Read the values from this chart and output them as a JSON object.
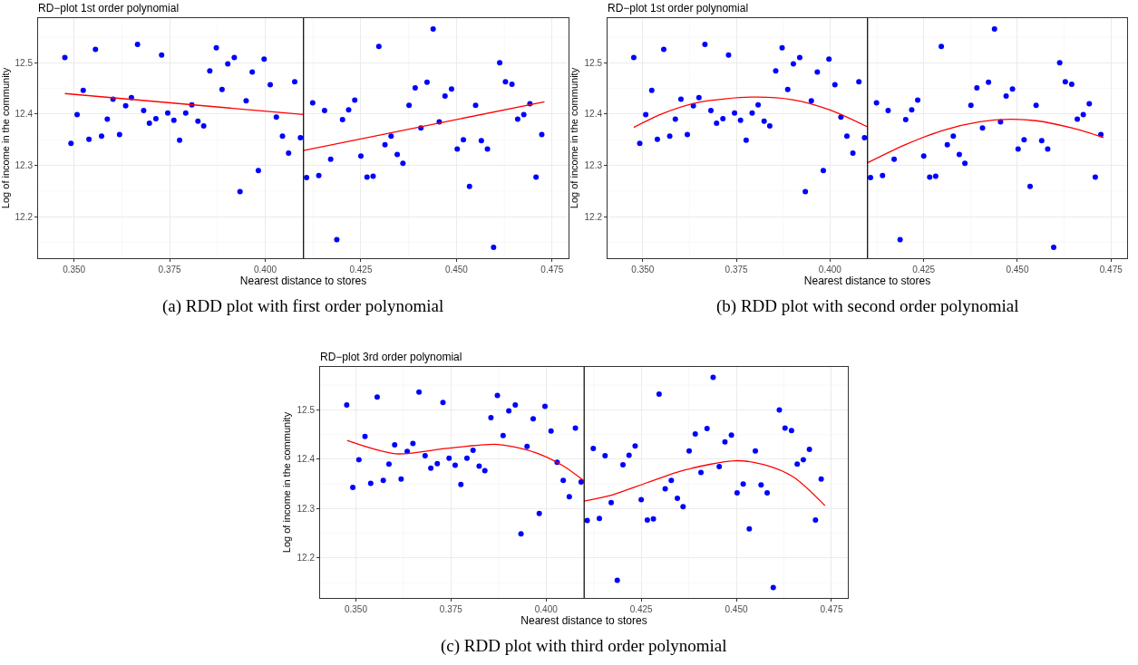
{
  "chart_data": [
    {
      "type": "scatter",
      "title": "RD−plot 1st order polynomial",
      "xlabel": "Nearest distance to stores",
      "ylabel": "Log of income in the community",
      "annotations": [
        "(a) RDD plot with first order polynomial"
      ],
      "xlim": [
        0.3406,
        0.4793
      ],
      "ylim": [
        12.119,
        12.587
      ],
      "xticks": [
        {
          "value": 0.35,
          "label": "0.350"
        },
        {
          "value": 0.375,
          "label": "0.375"
        },
        {
          "value": 0.4,
          "label": "0.400"
        },
        {
          "value": 0.425,
          "label": "0.425"
        },
        {
          "value": 0.45,
          "label": "0.450"
        },
        {
          "value": 0.475,
          "label": "0.475"
        }
      ],
      "yticks": [
        12.2,
        12.3,
        12.4,
        12.5
      ],
      "grid": true,
      "ref_lines": [
        {
          "axis": "x",
          "value": 0.41,
          "color": "#000000"
        }
      ],
      "series": [
        {
          "color": "#0000ff",
          "marker": "circle",
          "x": [
            0.3476,
            0.3492,
            0.3508,
            0.3524,
            0.3539,
            0.3556,
            0.3572,
            0.3587,
            0.3602,
            0.3619,
            0.3635,
            0.365,
            0.3666,
            0.3682,
            0.3697,
            0.3714,
            0.3729,
            0.3745,
            0.3761,
            0.3776,
            0.3792,
            0.3808,
            0.3824,
            0.3839,
            0.3855,
            0.3872,
            0.3887,
            0.3902,
            0.3919,
            0.3934,
            0.395,
            0.3966,
            0.3982,
            0.3997,
            0.4013,
            0.4029,
            0.4045,
            0.4061,
            0.4077,
            0.4092,
            0.4108,
            0.4124,
            0.414,
            0.4155,
            0.4171,
            0.4187,
            0.4202,
            0.4218,
            0.4234,
            0.425,
            0.4266,
            0.4282,
            0.4297,
            0.4313,
            0.4329,
            0.4345,
            0.436,
            0.4376,
            0.4392,
            0.4407,
            0.4423,
            0.4439,
            0.4455,
            0.447,
            0.4487,
            0.4502,
            0.4518,
            0.4534,
            0.455,
            0.4565,
            0.4581,
            0.4597,
            0.4613,
            0.4628,
            0.4645,
            0.466,
            0.4676,
            0.4692,
            0.4708,
            0.4723
          ],
          "values": [
            12.51,
            12.343,
            12.399,
            12.446,
            12.351,
            12.526,
            12.357,
            12.39,
            12.429,
            12.36,
            12.416,
            12.432,
            12.536,
            12.407,
            12.382,
            12.391,
            12.515,
            12.402,
            12.388,
            12.349,
            12.402,
            12.418,
            12.386,
            12.377,
            12.484,
            12.529,
            12.448,
            12.498,
            12.51,
            12.249,
            12.426,
            12.482,
            12.29,
            12.507,
            12.457,
            12.394,
            12.357,
            12.324,
            12.463,
            12.354,
            12.276,
            12.422,
            12.28,
            12.407,
            12.312,
            12.155,
            12.389,
            12.408,
            12.427,
            12.318,
            12.277,
            12.279,
            12.532,
            12.34,
            12.357,
            12.321,
            12.304,
            12.417,
            12.451,
            12.373,
            12.462,
            12.566,
            12.385,
            12.435,
            12.449,
            12.332,
            12.35,
            12.259,
            12.417,
            12.348,
            12.332,
            12.14,
            12.5,
            12.463,
            12.458,
            12.39,
            12.399,
            12.42,
            12.277,
            12.36
          ]
        },
        {
          "type": "line",
          "color": "#ff0000",
          "marker": "none",
          "x": [
            0.3476,
            0.41
          ],
          "values": [
            12.44,
            12.399
          ]
        },
        {
          "type": "line",
          "color": "#ff0000",
          "marker": "none",
          "x": [
            0.41,
            0.473
          ],
          "values": [
            12.329,
            12.424
          ]
        }
      ]
    },
    {
      "type": "scatter",
      "title": "RD−plot 1st order polynomial",
      "xlabel": "Nearest distance to stores",
      "ylabel": "Log of income in the community",
      "annotations": [
        "(b) RDD plot with second order polynomial"
      ],
      "xlim": [
        0.3406,
        0.4793
      ],
      "ylim": [
        12.119,
        12.587
      ],
      "xticks": [
        {
          "value": 0.35,
          "label": "0.350"
        },
        {
          "value": 0.375,
          "label": "0.375"
        },
        {
          "value": 0.4,
          "label": "0.400"
        },
        {
          "value": 0.425,
          "label": "0.425"
        },
        {
          "value": 0.45,
          "label": "0.450"
        },
        {
          "value": 0.475,
          "label": "0.475"
        }
      ],
      "yticks": [
        12.2,
        12.3,
        12.4,
        12.5
      ],
      "grid": true,
      "ref_lines": [
        {
          "axis": "x",
          "value": 0.41,
          "color": "#000000"
        }
      ],
      "series": [
        {
          "color": "#0000ff",
          "marker": "circle",
          "x": [
            0.3476,
            0.3492,
            0.3508,
            0.3524,
            0.3539,
            0.3556,
            0.3572,
            0.3587,
            0.3602,
            0.3619,
            0.3635,
            0.365,
            0.3666,
            0.3682,
            0.3697,
            0.3714,
            0.3729,
            0.3745,
            0.3761,
            0.3776,
            0.3792,
            0.3808,
            0.3824,
            0.3839,
            0.3855,
            0.3872,
            0.3887,
            0.3902,
            0.3919,
            0.3934,
            0.395,
            0.3966,
            0.3982,
            0.3997,
            0.4013,
            0.4029,
            0.4045,
            0.4061,
            0.4077,
            0.4092,
            0.4108,
            0.4124,
            0.414,
            0.4155,
            0.4171,
            0.4187,
            0.4202,
            0.4218,
            0.4234,
            0.425,
            0.4266,
            0.4282,
            0.4297,
            0.4313,
            0.4329,
            0.4345,
            0.436,
            0.4376,
            0.4392,
            0.4407,
            0.4423,
            0.4439,
            0.4455,
            0.447,
            0.4487,
            0.4502,
            0.4518,
            0.4534,
            0.455,
            0.4565,
            0.4581,
            0.4597,
            0.4613,
            0.4628,
            0.4645,
            0.466,
            0.4676,
            0.4692,
            0.4708,
            0.4723
          ],
          "values": [
            12.51,
            12.343,
            12.399,
            12.446,
            12.351,
            12.526,
            12.357,
            12.39,
            12.429,
            12.36,
            12.416,
            12.432,
            12.536,
            12.407,
            12.382,
            12.391,
            12.515,
            12.402,
            12.388,
            12.349,
            12.402,
            12.418,
            12.386,
            12.377,
            12.484,
            12.529,
            12.448,
            12.498,
            12.51,
            12.249,
            12.426,
            12.482,
            12.29,
            12.507,
            12.457,
            12.394,
            12.357,
            12.324,
            12.463,
            12.354,
            12.276,
            12.422,
            12.28,
            12.407,
            12.312,
            12.155,
            12.389,
            12.408,
            12.427,
            12.318,
            12.277,
            12.279,
            12.532,
            12.34,
            12.357,
            12.321,
            12.304,
            12.417,
            12.451,
            12.373,
            12.462,
            12.566,
            12.385,
            12.435,
            12.449,
            12.332,
            12.35,
            12.259,
            12.417,
            12.348,
            12.332,
            12.14,
            12.5,
            12.463,
            12.458,
            12.39,
            12.399,
            12.42,
            12.277,
            12.36
          ]
        },
        {
          "type": "line",
          "color": "#ff0000",
          "marker": "none",
          "x": [
            0.3476,
            0.355,
            0.365,
            0.379,
            0.39,
            0.4,
            0.41
          ],
          "values": [
            12.374,
            12.4,
            12.423,
            12.433,
            12.428,
            12.408,
            12.375
          ]
        },
        {
          "type": "line",
          "color": "#ff0000",
          "marker": "none",
          "x": [
            0.41,
            0.42,
            0.43,
            0.44,
            0.448,
            0.455,
            0.465,
            0.473
          ],
          "values": [
            12.305,
            12.34,
            12.368,
            12.385,
            12.39,
            12.387,
            12.372,
            12.354
          ]
        }
      ]
    },
    {
      "type": "scatter",
      "title": "RD−plot 3rd order polynomial",
      "xlabel": "Nearest distance to stores",
      "ylabel": "Log of income in the community",
      "annotations": [
        "(c) RDD plot with third order polynomial"
      ],
      "xlim": [
        0.3406,
        0.4793
      ],
      "ylim": [
        12.119,
        12.587
      ],
      "xticks": [
        {
          "value": 0.35,
          "label": "0.350"
        },
        {
          "value": 0.375,
          "label": "0.375"
        },
        {
          "value": 0.4,
          "label": "0.400"
        },
        {
          "value": 0.425,
          "label": "0.425"
        },
        {
          "value": 0.45,
          "label": "0.450"
        },
        {
          "value": 0.475,
          "label": "0.475"
        }
      ],
      "yticks": [
        12.2,
        12.3,
        12.4,
        12.5
      ],
      "grid": true,
      "ref_lines": [
        {
          "axis": "x",
          "value": 0.41,
          "color": "#000000"
        }
      ],
      "series": [
        {
          "color": "#0000ff",
          "marker": "circle",
          "x": [
            0.3476,
            0.3492,
            0.3508,
            0.3524,
            0.3539,
            0.3556,
            0.3572,
            0.3587,
            0.3602,
            0.3619,
            0.3635,
            0.365,
            0.3666,
            0.3682,
            0.3697,
            0.3714,
            0.3729,
            0.3745,
            0.3761,
            0.3776,
            0.3792,
            0.3808,
            0.3824,
            0.3839,
            0.3855,
            0.3872,
            0.3887,
            0.3902,
            0.3919,
            0.3934,
            0.395,
            0.3966,
            0.3982,
            0.3997,
            0.4013,
            0.4029,
            0.4045,
            0.4061,
            0.4077,
            0.4092,
            0.4108,
            0.4124,
            0.414,
            0.4155,
            0.4171,
            0.4187,
            0.4202,
            0.4218,
            0.4234,
            0.425,
            0.4266,
            0.4282,
            0.4297,
            0.4313,
            0.4329,
            0.4345,
            0.436,
            0.4376,
            0.4392,
            0.4407,
            0.4423,
            0.4439,
            0.4455,
            0.447,
            0.4487,
            0.4502,
            0.4518,
            0.4534,
            0.455,
            0.4565,
            0.4581,
            0.4597,
            0.4613,
            0.4628,
            0.4645,
            0.466,
            0.4676,
            0.4692,
            0.4708,
            0.4723
          ],
          "values": [
            12.51,
            12.343,
            12.399,
            12.446,
            12.351,
            12.526,
            12.357,
            12.39,
            12.429,
            12.36,
            12.416,
            12.432,
            12.536,
            12.407,
            12.382,
            12.391,
            12.515,
            12.402,
            12.388,
            12.349,
            12.402,
            12.418,
            12.386,
            12.377,
            12.484,
            12.529,
            12.448,
            12.498,
            12.51,
            12.249,
            12.426,
            12.482,
            12.29,
            12.507,
            12.457,
            12.394,
            12.357,
            12.324,
            12.463,
            12.354,
            12.276,
            12.422,
            12.28,
            12.407,
            12.312,
            12.155,
            12.389,
            12.408,
            12.427,
            12.318,
            12.277,
            12.279,
            12.532,
            12.34,
            12.357,
            12.321,
            12.304,
            12.417,
            12.451,
            12.373,
            12.462,
            12.566,
            12.385,
            12.435,
            12.449,
            12.332,
            12.35,
            12.259,
            12.417,
            12.348,
            12.332,
            12.14,
            12.5,
            12.463,
            12.458,
            12.39,
            12.399,
            12.42,
            12.277,
            12.36
          ]
        },
        {
          "type": "line",
          "color": "#ff0000",
          "marker": "none",
          "x": [
            0.3477,
            0.3605,
            0.374,
            0.3874,
            0.3974,
            0.4046,
            0.41
          ],
          "values": [
            12.438,
            12.411,
            12.422,
            12.43,
            12.413,
            12.386,
            12.356
          ]
        },
        {
          "type": "line",
          "color": "#ff0000",
          "marker": "none",
          "x": [
            0.41,
            0.4171,
            0.4267,
            0.4363,
            0.4497,
            0.4573,
            0.465,
            0.4733
          ],
          "values": [
            12.315,
            12.327,
            12.353,
            12.378,
            12.397,
            12.389,
            12.364,
            12.306
          ]
        }
      ]
    }
  ]
}
